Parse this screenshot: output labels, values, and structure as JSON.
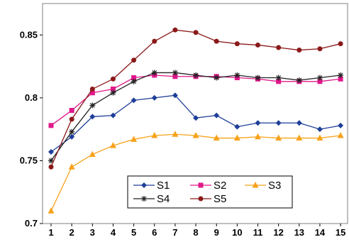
{
  "chart_data": {
    "type": "line",
    "title": "",
    "xlabel": "",
    "ylabel": "",
    "x": [
      1,
      2,
      3,
      4,
      5,
      6,
      7,
      8,
      9,
      10,
      11,
      12,
      13,
      14,
      15
    ],
    "x_tick_labels": [
      "1",
      "2",
      "3",
      "4",
      "5",
      "6",
      "7",
      "8",
      "9",
      "10",
      "11",
      "12",
      "13",
      "14",
      "15"
    ],
    "ylim": [
      0.7,
      0.875
    ],
    "y_ticks": [
      0.7,
      0.75,
      0.8,
      0.85
    ],
    "y_tick_labels": [
      "0.7",
      "0.75",
      "0.8",
      "0.85"
    ],
    "grid": false,
    "legend_position": "bottom-center",
    "series": [
      {
        "name": "S1",
        "color": "#1F3F99",
        "marker": "diamond",
        "values": [
          0.757,
          0.769,
          0.785,
          0.786,
          0.798,
          0.8,
          0.802,
          0.784,
          0.786,
          0.777,
          0.78,
          0.78,
          0.78,
          0.775,
          0.778
        ]
      },
      {
        "name": "S2",
        "color": "#E0188A",
        "marker": "square",
        "values": [
          0.778,
          0.79,
          0.804,
          0.807,
          0.816,
          0.818,
          0.817,
          0.817,
          0.817,
          0.816,
          0.815,
          0.813,
          0.813,
          0.813,
          0.815
        ]
      },
      {
        "name": "S3",
        "color": "#F7A21B",
        "marker": "triangle",
        "values": [
          0.71,
          0.745,
          0.755,
          0.762,
          0.767,
          0.77,
          0.771,
          0.77,
          0.768,
          0.768,
          0.769,
          0.768,
          0.768,
          0.768,
          0.77
        ]
      },
      {
        "name": "S4",
        "color": "#222222",
        "marker": "star",
        "values": [
          0.75,
          0.773,
          0.794,
          0.804,
          0.813,
          0.82,
          0.82,
          0.818,
          0.816,
          0.818,
          0.816,
          0.816,
          0.814,
          0.816,
          0.818
        ]
      },
      {
        "name": "S5",
        "color": "#8B1A1A",
        "marker": "circle",
        "values": [
          0.745,
          0.783,
          0.807,
          0.815,
          0.83,
          0.845,
          0.854,
          0.852,
          0.845,
          0.843,
          0.842,
          0.84,
          0.838,
          0.839,
          0.843
        ]
      }
    ]
  }
}
